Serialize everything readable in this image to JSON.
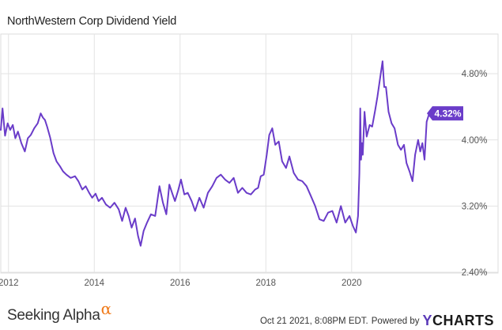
{
  "header": {
    "title": "NorthWestern Corp Dividend Yield"
  },
  "chart_data": {
    "type": "line",
    "title": "NorthWestern Corp Dividend Yield",
    "xlabel": "",
    "ylabel": "",
    "xlim": [
      2011.82,
      2021.81
    ],
    "ylim": [
      2.4,
      5.27
    ],
    "y_scale": "linear",
    "grid": {
      "horizontal": true,
      "vertical": true
    },
    "x_ticks": [
      2012,
      2014,
      2016,
      2018,
      2020
    ],
    "x_tick_labels": [
      "2012",
      "2014",
      "2016",
      "2018",
      "2020"
    ],
    "y_ticks": [
      2.4,
      3.2,
      4.0,
      4.8
    ],
    "y_tick_labels": [
      "2.40%",
      "3.20%",
      "4.00%",
      "4.80%"
    ],
    "y_axis_side": "right",
    "color": "#6a3cc9",
    "last_value_label": "4.32%",
    "series": [
      {
        "x": [
          2011.82,
          2011.86,
          2011.92,
          2011.98,
          2012.04,
          2012.1,
          2012.16,
          2012.22,
          2012.3,
          2012.38,
          2012.45,
          2012.52,
          2012.6,
          2012.68,
          2012.75,
          2012.8,
          2012.85,
          2012.9,
          2012.97,
          2013.05,
          2013.12,
          2013.2,
          2013.27,
          2013.35,
          2013.45,
          2013.55,
          2013.63,
          2013.72,
          2013.8,
          2013.88,
          2013.95,
          2014.03,
          2014.1,
          2014.18,
          2014.27,
          2014.37,
          2014.47,
          2014.57,
          2014.65,
          2014.73,
          2014.8,
          2014.87,
          2014.95,
          2015.02,
          2015.08,
          2015.15,
          2015.23,
          2015.32,
          2015.42,
          2015.52,
          2015.6,
          2015.68,
          2015.75,
          2015.82,
          2015.88,
          2015.95,
          2016.02,
          2016.1,
          2016.18,
          2016.27,
          2016.35,
          2016.45,
          2016.55,
          2016.65,
          2016.75,
          2016.85,
          2016.95,
          2017.05,
          2017.15,
          2017.25,
          2017.35,
          2017.45,
          2017.55,
          2017.65,
          2017.75,
          2017.82,
          2017.88,
          2017.95,
          2018.02,
          2018.08,
          2018.15,
          2018.22,
          2018.3,
          2018.38,
          2018.47,
          2018.55,
          2018.65,
          2018.75,
          2018.85,
          2018.95,
          2019.05,
          2019.15,
          2019.25,
          2019.35,
          2019.45,
          2019.55,
          2019.65,
          2019.75,
          2019.85,
          2019.95,
          2020.03,
          2020.1,
          2020.15,
          2020.18,
          2020.2,
          2020.22,
          2020.24,
          2020.26,
          2020.3,
          2020.35,
          2020.42,
          2020.48,
          2020.55,
          2020.6,
          2020.65,
          2020.72,
          2020.76,
          2020.8,
          2020.86,
          2020.93,
          2021.0,
          2021.08,
          2021.15,
          2021.22,
          2021.28,
          2021.35,
          2021.42,
          2021.48,
          2021.55,
          2021.6,
          2021.65,
          2021.7,
          2021.75,
          2021.81
        ],
        "y": [
          4.12,
          4.38,
          4.05,
          4.2,
          4.12,
          4.18,
          4.02,
          4.1,
          3.96,
          3.86,
          4.02,
          4.06,
          4.14,
          4.2,
          4.32,
          4.27,
          4.24,
          4.16,
          4.03,
          3.84,
          3.74,
          3.68,
          3.62,
          3.58,
          3.54,
          3.56,
          3.5,
          3.4,
          3.44,
          3.36,
          3.3,
          3.35,
          3.26,
          3.3,
          3.22,
          3.18,
          3.24,
          3.16,
          3.02,
          3.18,
          3.08,
          2.94,
          3.05,
          2.84,
          2.72,
          2.9,
          3.0,
          3.1,
          3.08,
          3.44,
          3.24,
          3.1,
          3.46,
          3.35,
          3.26,
          3.38,
          3.52,
          3.34,
          3.36,
          3.26,
          3.14,
          3.3,
          3.18,
          3.36,
          3.44,
          3.54,
          3.58,
          3.52,
          3.48,
          3.54,
          3.36,
          3.42,
          3.36,
          3.34,
          3.4,
          3.42,
          3.56,
          3.58,
          3.82,
          4.06,
          4.14,
          3.94,
          3.98,
          3.74,
          3.66,
          3.8,
          3.6,
          3.52,
          3.5,
          3.44,
          3.32,
          3.2,
          3.04,
          3.02,
          3.12,
          3.14,
          3.0,
          3.2,
          3.0,
          3.08,
          2.96,
          2.88,
          3.08,
          3.6,
          4.38,
          3.76,
          3.96,
          3.82,
          4.34,
          4.04,
          4.18,
          4.16,
          4.36,
          4.52,
          4.7,
          4.95,
          4.64,
          4.64,
          4.34,
          4.2,
          4.14,
          3.94,
          3.88,
          3.94,
          3.72,
          3.62,
          3.5,
          3.82,
          4.0,
          3.86,
          3.96,
          3.76,
          4.22,
          4.32
        ]
      }
    ]
  },
  "footer": {
    "left_brand": "Seeking Alpha",
    "left_brand_symbol": "α",
    "timestamp": "Oct 21 2021, 8:08PM EDT.",
    "powered_by": "Powered by",
    "right_brand_y": "Y",
    "right_brand_rest": "CHARTS"
  }
}
